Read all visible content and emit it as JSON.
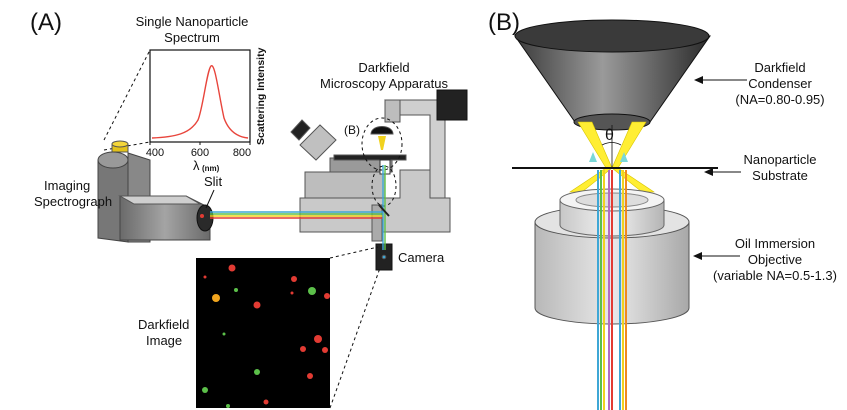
{
  "panels": {
    "a": {
      "label": "(A)"
    },
    "b": {
      "label": "(B)"
    }
  },
  "spectrum": {
    "title_line1": "Single Nanoparticle",
    "title_line2": "Spectrum",
    "y_label": "Scattering Intensity",
    "x_label_symbol": "λ",
    "x_label_unit": "(nm)",
    "x_ticks": [
      "400",
      "600",
      "800"
    ],
    "peak_color": "#e8453c"
  },
  "apparatus": {
    "title_line1": "Darkfield",
    "title_line2": "Microscopy Apparatus",
    "inset_marker": "(B)",
    "camera": "Camera",
    "slit": "Slit",
    "spectrograph_line1": "Imaging",
    "spectrograph_line2": "Spectrograph"
  },
  "darkfield_image": {
    "label_line1": "Darkfield",
    "label_line2": "Image"
  },
  "panel_b": {
    "condenser_line1": "Darkfield",
    "condenser_line2": "Condenser",
    "condenser_line3": "(NA=0.80-0.95)",
    "theta": "θ",
    "substrate_line1": "Nanoparticle",
    "substrate_line2": "Substrate",
    "objective_line1": "Oil Immersion",
    "objective_line2": "Objective",
    "objective_line3": "(variable NA=0.5-1.3)"
  },
  "colors": {
    "beam_blue": "#3fa7d6",
    "beam_green": "#5cc04a",
    "beam_yellow": "#f1d21e",
    "beam_orange": "#ef8a1e",
    "beam_red": "#e23b33",
    "beam_purple": "#b36cc4",
    "light_cone": "#ffee33"
  }
}
